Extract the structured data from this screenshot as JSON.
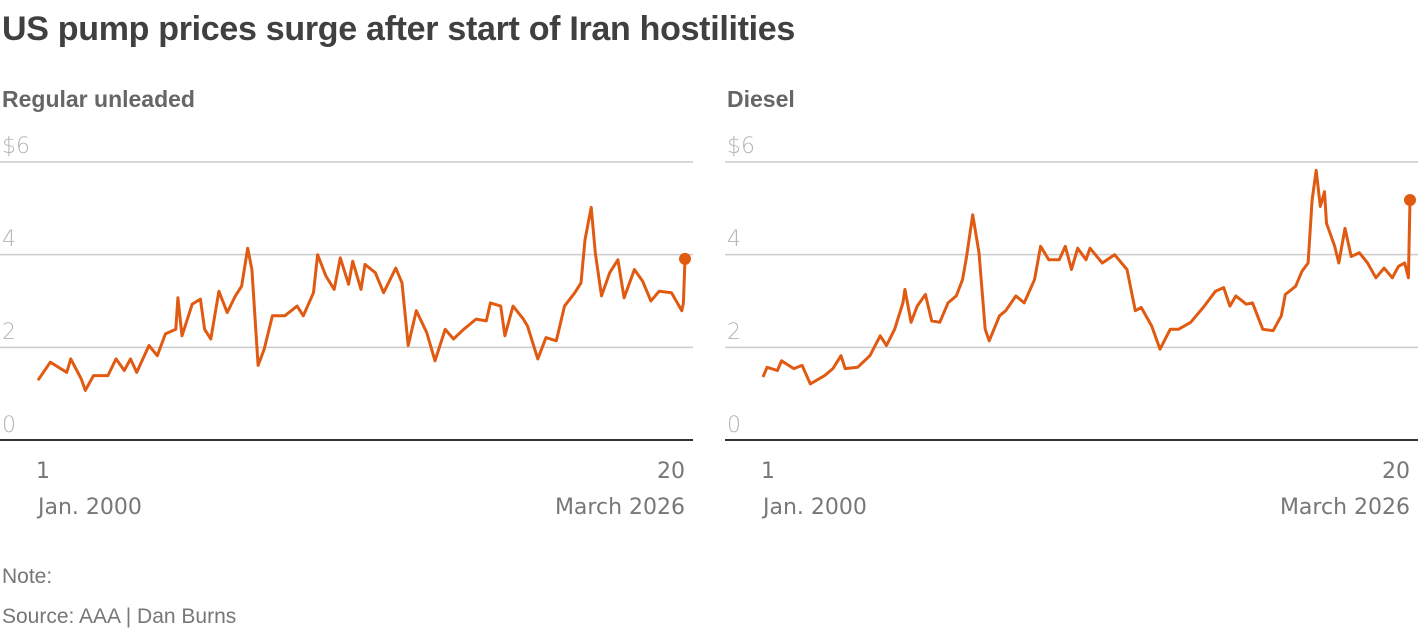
{
  "title": "US pump prices surge after start of Iran hostilities",
  "footer": {
    "note": "Note:",
    "source": "Source: AAA | Dan Burns"
  },
  "colors": {
    "line": "#e05a12",
    "grid": "#cccccc",
    "baseline": "#333333"
  },
  "chart_data": [
    {
      "type": "line",
      "title": "Regular unleaded",
      "ylim": [
        0,
        6
      ],
      "yticks": [
        "$6",
        "4",
        "2",
        "0"
      ],
      "ytick_values": [
        6,
        4,
        2,
        0
      ],
      "xtick_start": {
        "day": "1",
        "label": "Jan. 2000",
        "date": "2000-01-01"
      },
      "xtick_end": {
        "day": "20",
        "label": "March 2026",
        "date": "2026-03-20"
      },
      "grid": true,
      "end_marker": true,
      "points": [
        [
          "2000-01-01",
          1.29
        ],
        [
          "2000-07-01",
          1.68
        ],
        [
          "2001-03-01",
          1.46
        ],
        [
          "2001-05-01",
          1.75
        ],
        [
          "2001-10-01",
          1.32
        ],
        [
          "2001-12-01",
          1.07
        ],
        [
          "2002-04-01",
          1.39
        ],
        [
          "2002-11-01",
          1.39
        ],
        [
          "2003-03-01",
          1.75
        ],
        [
          "2003-07-01",
          1.5
        ],
        [
          "2003-10-01",
          1.75
        ],
        [
          "2004-01-01",
          1.46
        ],
        [
          "2004-07-01",
          2.04
        ],
        [
          "2004-11-01",
          1.82
        ],
        [
          "2005-03-01",
          2.29
        ],
        [
          "2005-08-01",
          2.39
        ],
        [
          "2005-09-01",
          3.07
        ],
        [
          "2005-11-01",
          2.25
        ],
        [
          "2006-04-01",
          2.93
        ],
        [
          "2006-08-01",
          3.04
        ],
        [
          "2006-10-01",
          2.39
        ],
        [
          "2007-01-01",
          2.18
        ],
        [
          "2007-05-01",
          3.21
        ],
        [
          "2007-09-01",
          2.75
        ],
        [
          "2008-01-01",
          3.11
        ],
        [
          "2008-04-01",
          3.32
        ],
        [
          "2008-07-01",
          4.14
        ],
        [
          "2008-09-01",
          3.68
        ],
        [
          "2008-12-01",
          1.61
        ],
        [
          "2009-03-01",
          1.96
        ],
        [
          "2009-07-01",
          2.68
        ],
        [
          "2010-01-01",
          2.68
        ],
        [
          "2010-07-01",
          2.89
        ],
        [
          "2010-10-01",
          2.68
        ],
        [
          "2011-03-01",
          3.18
        ],
        [
          "2011-05-01",
          4.0
        ],
        [
          "2011-09-01",
          3.54
        ],
        [
          "2012-01-01",
          3.25
        ],
        [
          "2012-04-01",
          3.93
        ],
        [
          "2012-08-01",
          3.36
        ],
        [
          "2012-10-01",
          3.86
        ],
        [
          "2013-02-01",
          3.25
        ],
        [
          "2013-04-01",
          3.79
        ],
        [
          "2013-09-01",
          3.61
        ],
        [
          "2014-01-01",
          3.18
        ],
        [
          "2014-07-01",
          3.71
        ],
        [
          "2014-10-01",
          3.39
        ],
        [
          "2015-01-01",
          2.04
        ],
        [
          "2015-05-01",
          2.79
        ],
        [
          "2015-10-01",
          2.32
        ],
        [
          "2016-02-01",
          1.71
        ],
        [
          "2016-07-01",
          2.39
        ],
        [
          "2016-11-01",
          2.18
        ],
        [
          "2017-04-01",
          2.39
        ],
        [
          "2017-10-01",
          2.61
        ],
        [
          "2018-03-01",
          2.57
        ],
        [
          "2018-05-01",
          2.96
        ],
        [
          "2018-10-01",
          2.89
        ],
        [
          "2018-12-01",
          2.25
        ],
        [
          "2019-04-01",
          2.89
        ],
        [
          "2019-09-01",
          2.61
        ],
        [
          "2019-11-01",
          2.46
        ],
        [
          "2020-04-01",
          1.75
        ],
        [
          "2020-08-01",
          2.21
        ],
        [
          "2021-01-01",
          2.14
        ],
        [
          "2021-05-01",
          2.89
        ],
        [
          "2021-10-01",
          3.18
        ],
        [
          "2022-01-01",
          3.39
        ],
        [
          "2022-03-01",
          4.32
        ],
        [
          "2022-06-01",
          5.02
        ],
        [
          "2022-08-01",
          4.04
        ],
        [
          "2022-11-01",
          3.11
        ],
        [
          "2023-03-01",
          3.61
        ],
        [
          "2023-07-01",
          3.89
        ],
        [
          "2023-10-01",
          3.07
        ],
        [
          "2024-03-01",
          3.68
        ],
        [
          "2024-07-01",
          3.43
        ],
        [
          "2024-11-01",
          3.0
        ],
        [
          "2025-03-01",
          3.21
        ],
        [
          "2025-09-01",
          3.18
        ],
        [
          "2026-02-01",
          2.79
        ],
        [
          "2026-02-25",
          2.96
        ],
        [
          "2026-03-20",
          3.91
        ]
      ]
    },
    {
      "type": "line",
      "title": "Diesel",
      "ylim": [
        0,
        6
      ],
      "yticks": [
        "$6",
        "4",
        "2",
        "0"
      ],
      "ytick_values": [
        6,
        4,
        2,
        0
      ],
      "xtick_start": {
        "day": "1",
        "label": "Jan. 2000",
        "date": "2000-01-01"
      },
      "xtick_end": {
        "day": "20",
        "label": "March 2026",
        "date": "2026-03-20"
      },
      "grid": true,
      "end_marker": true,
      "points": [
        [
          "2000-01-01",
          1.36
        ],
        [
          "2000-03-01",
          1.57
        ],
        [
          "2000-08-01",
          1.5
        ],
        [
          "2000-10-01",
          1.71
        ],
        [
          "2001-04-01",
          1.54
        ],
        [
          "2001-08-01",
          1.61
        ],
        [
          "2001-12-01",
          1.21
        ],
        [
          "2002-07-01",
          1.39
        ],
        [
          "2002-11-01",
          1.54
        ],
        [
          "2003-03-01",
          1.82
        ],
        [
          "2003-05-01",
          1.54
        ],
        [
          "2003-11-01",
          1.57
        ],
        [
          "2004-05-01",
          1.82
        ],
        [
          "2004-10-01",
          2.25
        ],
        [
          "2005-01-01",
          2.04
        ],
        [
          "2005-05-01",
          2.39
        ],
        [
          "2005-09-01",
          2.96
        ],
        [
          "2005-10-01",
          3.25
        ],
        [
          "2006-01-01",
          2.54
        ],
        [
          "2006-04-01",
          2.89
        ],
        [
          "2006-08-01",
          3.14
        ],
        [
          "2006-11-01",
          2.57
        ],
        [
          "2007-03-01",
          2.54
        ],
        [
          "2007-07-01",
          2.96
        ],
        [
          "2007-11-01",
          3.11
        ],
        [
          "2008-02-01",
          3.46
        ],
        [
          "2008-04-01",
          3.96
        ],
        [
          "2008-07-01",
          4.86
        ],
        [
          "2008-10-01",
          4.04
        ],
        [
          "2009-01-01",
          2.39
        ],
        [
          "2009-03-01",
          2.14
        ],
        [
          "2009-08-01",
          2.68
        ],
        [
          "2009-11-01",
          2.79
        ],
        [
          "2010-04-01",
          3.11
        ],
        [
          "2010-08-01",
          2.96
        ],
        [
          "2011-01-01",
          3.46
        ],
        [
          "2011-04-01",
          4.18
        ],
        [
          "2011-08-01",
          3.89
        ],
        [
          "2012-01-01",
          3.89
        ],
        [
          "2012-04-01",
          4.18
        ],
        [
          "2012-07-01",
          3.68
        ],
        [
          "2012-10-01",
          4.14
        ],
        [
          "2013-02-01",
          3.89
        ],
        [
          "2013-04-01",
          4.14
        ],
        [
          "2013-10-01",
          3.82
        ],
        [
          "2014-04-01",
          4.0
        ],
        [
          "2014-10-01",
          3.68
        ],
        [
          "2015-02-01",
          2.79
        ],
        [
          "2015-05-01",
          2.86
        ],
        [
          "2015-10-01",
          2.46
        ],
        [
          "2016-02-01",
          1.96
        ],
        [
          "2016-07-01",
          2.39
        ],
        [
          "2016-11-01",
          2.39
        ],
        [
          "2017-05-01",
          2.54
        ],
        [
          "2017-11-01",
          2.86
        ],
        [
          "2018-05-01",
          3.21
        ],
        [
          "2018-09-01",
          3.29
        ],
        [
          "2018-12-01",
          2.89
        ],
        [
          "2019-03-01",
          3.11
        ],
        [
          "2019-08-01",
          2.93
        ],
        [
          "2019-11-01",
          2.96
        ],
        [
          "2020-04-01",
          2.39
        ],
        [
          "2020-09-01",
          2.36
        ],
        [
          "2021-01-01",
          2.68
        ],
        [
          "2021-03-01",
          3.14
        ],
        [
          "2021-08-01",
          3.32
        ],
        [
          "2021-11-01",
          3.64
        ],
        [
          "2022-02-01",
          3.82
        ],
        [
          "2022-04-01",
          5.18
        ],
        [
          "2022-06-01",
          5.82
        ],
        [
          "2022-08-01",
          5.04
        ],
        [
          "2022-10-01",
          5.36
        ],
        [
          "2022-11-01",
          4.68
        ],
        [
          "2023-03-01",
          4.18
        ],
        [
          "2023-05-01",
          3.82
        ],
        [
          "2023-08-01",
          4.57
        ],
        [
          "2023-11-01",
          3.96
        ],
        [
          "2024-03-01",
          4.04
        ],
        [
          "2024-07-01",
          3.82
        ],
        [
          "2024-11-01",
          3.5
        ],
        [
          "2025-03-01",
          3.71
        ],
        [
          "2025-07-01",
          3.5
        ],
        [
          "2025-10-01",
          3.75
        ],
        [
          "2026-01-01",
          3.82
        ],
        [
          "2026-02-25",
          3.5
        ],
        [
          "2026-03-20",
          5.18
        ]
      ]
    }
  ]
}
